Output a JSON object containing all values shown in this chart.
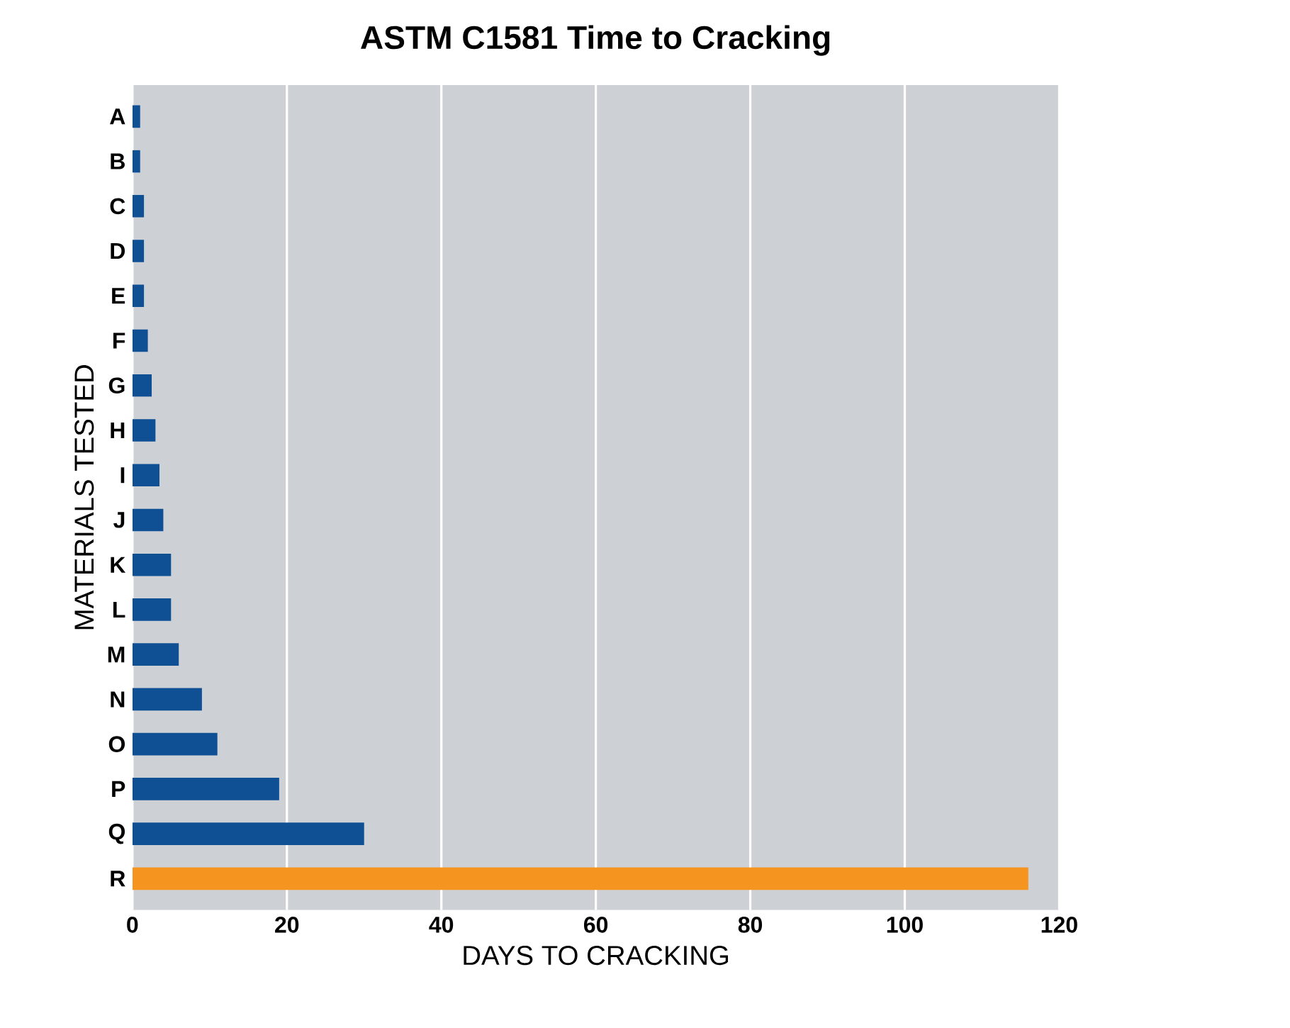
{
  "chart_data": {
    "type": "bar",
    "orientation": "horizontal",
    "title": "ASTM C1581 Time to Cracking",
    "xlabel": "DAYS TO CRACKING",
    "ylabel": "MATERIALS TESTED",
    "categories": [
      "A",
      "B",
      "C",
      "D",
      "E",
      "F",
      "G",
      "H",
      "I",
      "J",
      "K",
      "L",
      "M",
      "N",
      "O",
      "P",
      "Q",
      "R"
    ],
    "values": [
      1,
      1,
      1.5,
      1.5,
      1.5,
      2,
      2.5,
      3,
      3.5,
      4,
      5,
      5,
      6,
      9,
      11,
      19,
      30,
      116
    ],
    "colors": [
      "#0f4f94",
      "#0f4f94",
      "#0f4f94",
      "#0f4f94",
      "#0f4f94",
      "#0f4f94",
      "#0f4f94",
      "#0f4f94",
      "#0f4f94",
      "#0f4f94",
      "#0f4f94",
      "#0f4f94",
      "#0f4f94",
      "#0f4f94",
      "#0f4f94",
      "#0f4f94",
      "#0f4f94",
      "#f5951f"
    ],
    "xlim": [
      0,
      120
    ],
    "xticks": [
      0,
      20,
      40,
      60,
      80,
      100,
      120
    ],
    "grid": "x"
  }
}
